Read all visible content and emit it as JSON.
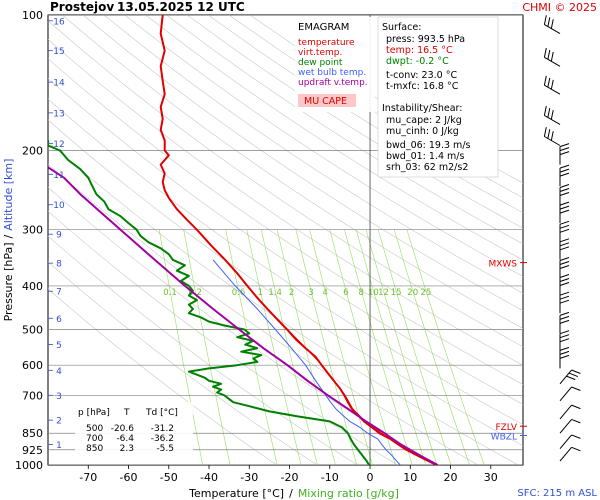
{
  "header": {
    "station": "Prostejov",
    "datetime": "13.05.2025 12 UTC",
    "credit": "CHMI © 2025"
  },
  "axes": {
    "ylabel_pressure": "Pressure [hPa]",
    "ylabel_sep": "/",
    "ylabel_altitude": "Altitude [km]",
    "xlabel_temp": "Temperature [°C]",
    "xlabel_sep": "/",
    "xlabel_mix": "Mixing ratio [g/kg]",
    "sfc_label": "SFC: 215 m ASL"
  },
  "legend": {
    "title": "EMAGRAM",
    "items": [
      {
        "label": "temperature",
        "color": "#e00000"
      },
      {
        "label": "virt.temp.",
        "color": "#e00000"
      },
      {
        "label": "dew point",
        "color": "#008000"
      },
      {
        "label": "wet bulb temp.",
        "color": "#4060ff"
      },
      {
        "label": "updraft v.temp.",
        "color": "#a000a0"
      }
    ],
    "mu_cape_label": "MU CAPE"
  },
  "surface": {
    "title": "Surface:",
    "press": "press: 993.5 hPa",
    "temp": "temp: 16.5 °C",
    "dwpt": "dwpt: -0.2 °C",
    "tconv": "t-conv: 23.0 °C",
    "tmxfc": "t-mxfc: 16.8 °C"
  },
  "instability": {
    "title": "Instability/Shear:",
    "mu_cape": "mu_cape: 2 J/kg",
    "mu_cinh": "mu_cinh: 0 J/kg",
    "bwd_06": "bwd_06: 19.3 m/s",
    "bwd_01": "bwd_01: 1.4 m/s",
    "srh_03": "srh_03: 62 m2/s2"
  },
  "table": {
    "headers": [
      "p [hPa]",
      "T",
      "Td [°C]"
    ],
    "rows": [
      [
        "500",
        "-20.6",
        "-31.2"
      ],
      [
        "700",
        "-6.4",
        "-36.2"
      ],
      [
        "850",
        "2.3",
        "-5.5"
      ]
    ]
  },
  "level_markers": [
    {
      "label": "MXWS",
      "color": "#e00000",
      "p": 355
    },
    {
      "label": "FZLV",
      "color": "#e00000",
      "p": 820
    },
    {
      "label": "WBZL",
      "color": "#4060ff",
      "p": 860
    }
  ],
  "colors": {
    "temperature": "#e00000",
    "dewpoint": "#008000",
    "wetbulb": "#4060ff",
    "parcel": "#a000a0",
    "mixratio": "#90e060",
    "title_red": "#e00000"
  },
  "chart_data": {
    "type": "line",
    "title": "EMAGRAM",
    "xlabel": "Temperature [°C] / Mixing ratio [g/kg]",
    "ylabel": "Pressure [hPa] / Altitude [km]",
    "xlim": [
      -80,
      38
    ],
    "ylim": [
      1000,
      100
    ],
    "y_scale": "log",
    "x_ticks": [
      "-70",
      "-60",
      "-50",
      "-40",
      "-30",
      "-20",
      "-10",
      "0",
      "10",
      "20",
      "30"
    ],
    "x_tick_values": [
      -70,
      -60,
      -50,
      -40,
      -30,
      -20,
      -10,
      0,
      10,
      20,
      30
    ],
    "y_ticks": [
      "100",
      "200",
      "300",
      "400",
      "500",
      "600",
      "700",
      "850",
      "925",
      "1000"
    ],
    "y_tick_values": [
      100,
      200,
      300,
      400,
      500,
      600,
      700,
      850,
      925,
      1000
    ],
    "altitude_ticks": [
      "1",
      "2",
      "3",
      "4",
      "5",
      "6",
      "7",
      "8",
      "9",
      "10",
      "11",
      "12",
      "13",
      "14",
      "15",
      "16"
    ],
    "altitude_tick_pressures": [
      900,
      795,
      700,
      616,
      540,
      472,
      411,
      356,
      307,
      264,
      226,
      193,
      165,
      141,
      120,
      103
    ],
    "mixing_ratio_labels": [
      "0.1",
      "0.2",
      "0.6",
      "1",
      "1.4",
      "2",
      "3",
      "4",
      "6",
      "8",
      "10",
      "12",
      "15",
      "20",
      "25"
    ],
    "mixing_ratio_values": [
      0.1,
      0.2,
      0.6,
      1,
      1.4,
      2,
      3,
      4,
      6,
      8,
      10,
      12,
      15,
      20,
      25
    ],
    "mixing_ratio_label_pressure": 410,
    "dry_adiabat_thetas": [
      250,
      260,
      270,
      280,
      290,
      300,
      310,
      320,
      330,
      340,
      350,
      360,
      370,
      380,
      390,
      400,
      410,
      420,
      430,
      440,
      450,
      460,
      470
    ],
    "series": [
      {
        "name": "temperature",
        "color": "#e00000",
        "points": [
          [
            1000,
            16.5
          ],
          [
            975,
            14
          ],
          [
            950,
            11.5
          ],
          [
            925,
            9
          ],
          [
            900,
            7
          ],
          [
            875,
            5
          ],
          [
            850,
            2.3
          ],
          [
            825,
            0.5
          ],
          [
            800,
            -1.5
          ],
          [
            775,
            -3
          ],
          [
            750,
            -4.5
          ],
          [
            725,
            -5.5
          ],
          [
            700,
            -6.4
          ],
          [
            675,
            -7.5
          ],
          [
            650,
            -9
          ],
          [
            625,
            -10.5
          ],
          [
            600,
            -12
          ],
          [
            575,
            -13.5
          ],
          [
            550,
            -16
          ],
          [
            525,
            -18.5
          ],
          [
            500,
            -20.6
          ],
          [
            475,
            -23
          ],
          [
            450,
            -25.5
          ],
          [
            425,
            -28
          ],
          [
            400,
            -30.5
          ],
          [
            375,
            -33
          ],
          [
            350,
            -36
          ],
          [
            325,
            -39.5
          ],
          [
            300,
            -43
          ],
          [
            285,
            -45.5
          ],
          [
            270,
            -48
          ],
          [
            255,
            -50
          ],
          [
            245,
            -51
          ],
          [
            235,
            -51.5
          ],
          [
            225,
            -51
          ],
          [
            215,
            -52
          ],
          [
            205,
            -50
          ],
          [
            200,
            -51
          ],
          [
            190,
            -51
          ],
          [
            180,
            -52
          ],
          [
            170,
            -51.5
          ],
          [
            160,
            -52
          ],
          [
            150,
            -51
          ],
          [
            140,
            -51.5
          ],
          [
            130,
            -52
          ],
          [
            120,
            -51
          ],
          [
            110,
            -52
          ],
          [
            100,
            -51.5
          ]
        ]
      },
      {
        "name": "virt.temp.",
        "color": "#e00000",
        "points": [
          [
            1000,
            16.8
          ],
          [
            950,
            11.8
          ],
          [
            900,
            7.3
          ],
          [
            850,
            2.8
          ],
          [
            800,
            -1.2
          ],
          [
            750,
            -4.3
          ],
          [
            700,
            -6.2
          ],
          [
            650,
            -8.9
          ],
          [
            600,
            -11.9
          ],
          [
            550,
            -15.9
          ],
          [
            500,
            -20.5
          ]
        ]
      },
      {
        "name": "dew point",
        "color": "#008000",
        "points": [
          [
            1000,
            -0.2
          ],
          [
            975,
            -1
          ],
          [
            950,
            -2
          ],
          [
            925,
            -3
          ],
          [
            900,
            -4
          ],
          [
            875,
            -4.8
          ],
          [
            850,
            -5.5
          ],
          [
            825,
            -7
          ],
          [
            800,
            -10
          ],
          [
            780,
            -18
          ],
          [
            760,
            -25
          ],
          [
            740,
            -30
          ],
          [
            725,
            -34
          ],
          [
            700,
            -36.2
          ],
          [
            690,
            -38
          ],
          [
            680,
            -37
          ],
          [
            670,
            -39
          ],
          [
            660,
            -37
          ],
          [
            650,
            -40
          ],
          [
            640,
            -41
          ],
          [
            630,
            -43
          ],
          [
            620,
            -45
          ],
          [
            610,
            -40
          ],
          [
            600,
            -33
          ],
          [
            590,
            -28
          ],
          [
            580,
            -29
          ],
          [
            570,
            -27
          ],
          [
            560,
            -32
          ],
          [
            550,
            -28
          ],
          [
            540,
            -31
          ],
          [
            530,
            -29
          ],
          [
            520,
            -33
          ],
          [
            510,
            -30
          ],
          [
            500,
            -31.2
          ],
          [
            490,
            -36
          ],
          [
            480,
            -40
          ],
          [
            470,
            -42
          ],
          [
            460,
            -45
          ],
          [
            450,
            -44
          ],
          [
            440,
            -45
          ],
          [
            430,
            -43
          ],
          [
            420,
            -45
          ],
          [
            410,
            -44
          ],
          [
            400,
            -45
          ],
          [
            390,
            -47
          ],
          [
            380,
            -45
          ],
          [
            370,
            -48
          ],
          [
            360,
            -46
          ],
          [
            350,
            -49
          ],
          [
            340,
            -50
          ],
          [
            330,
            -52
          ],
          [
            320,
            -55
          ],
          [
            310,
            -57
          ],
          [
            300,
            -58
          ],
          [
            290,
            -60
          ],
          [
            280,
            -62
          ],
          [
            270,
            -65
          ],
          [
            260,
            -66
          ],
          [
            250,
            -68
          ],
          [
            240,
            -69
          ],
          [
            230,
            -70
          ],
          [
            220,
            -72
          ],
          [
            210,
            -75
          ],
          [
            200,
            -77
          ],
          [
            195,
            -80
          ],
          [
            190,
            -80
          ],
          [
            185,
            -81
          ]
        ]
      },
      {
        "name": "wet bulb temp.",
        "color": "#4060ff",
        "points": [
          [
            1000,
            7.5
          ],
          [
            975,
            6.4
          ],
          [
            950,
            5.3
          ],
          [
            925,
            4
          ],
          [
            900,
            2.9
          ],
          [
            875,
            1.9
          ],
          [
            850,
            -0.6
          ],
          [
            825,
            -2.5
          ],
          [
            800,
            -5
          ],
          [
            775,
            -6.8
          ],
          [
            750,
            -8.5
          ],
          [
            725,
            -9.8
          ],
          [
            700,
            -11
          ],
          [
            650,
            -13.5
          ],
          [
            600,
            -16
          ],
          [
            550,
            -19.5
          ],
          [
            500,
            -23.5
          ],
          [
            450,
            -28
          ],
          [
            400,
            -33.5
          ],
          [
            350,
            -39
          ]
        ]
      },
      {
        "name": "updraft v.temp.",
        "color": "#a000a0",
        "points": [
          [
            1000,
            16.8
          ],
          [
            950,
            12.2
          ],
          [
            900,
            7.6
          ],
          [
            850,
            3.6
          ],
          [
            800,
            -1
          ],
          [
            750,
            -5.5
          ],
          [
            700,
            -10.5
          ],
          [
            650,
            -15.5
          ],
          [
            600,
            -20.5
          ],
          [
            550,
            -26.5
          ],
          [
            500,
            -32.5
          ],
          [
            450,
            -39
          ],
          [
            400,
            -46
          ],
          [
            350,
            -53.5
          ],
          [
            300,
            -62
          ],
          [
            250,
            -72
          ],
          [
            230,
            -76
          ],
          [
            218,
            -80
          ]
        ]
      }
    ]
  }
}
